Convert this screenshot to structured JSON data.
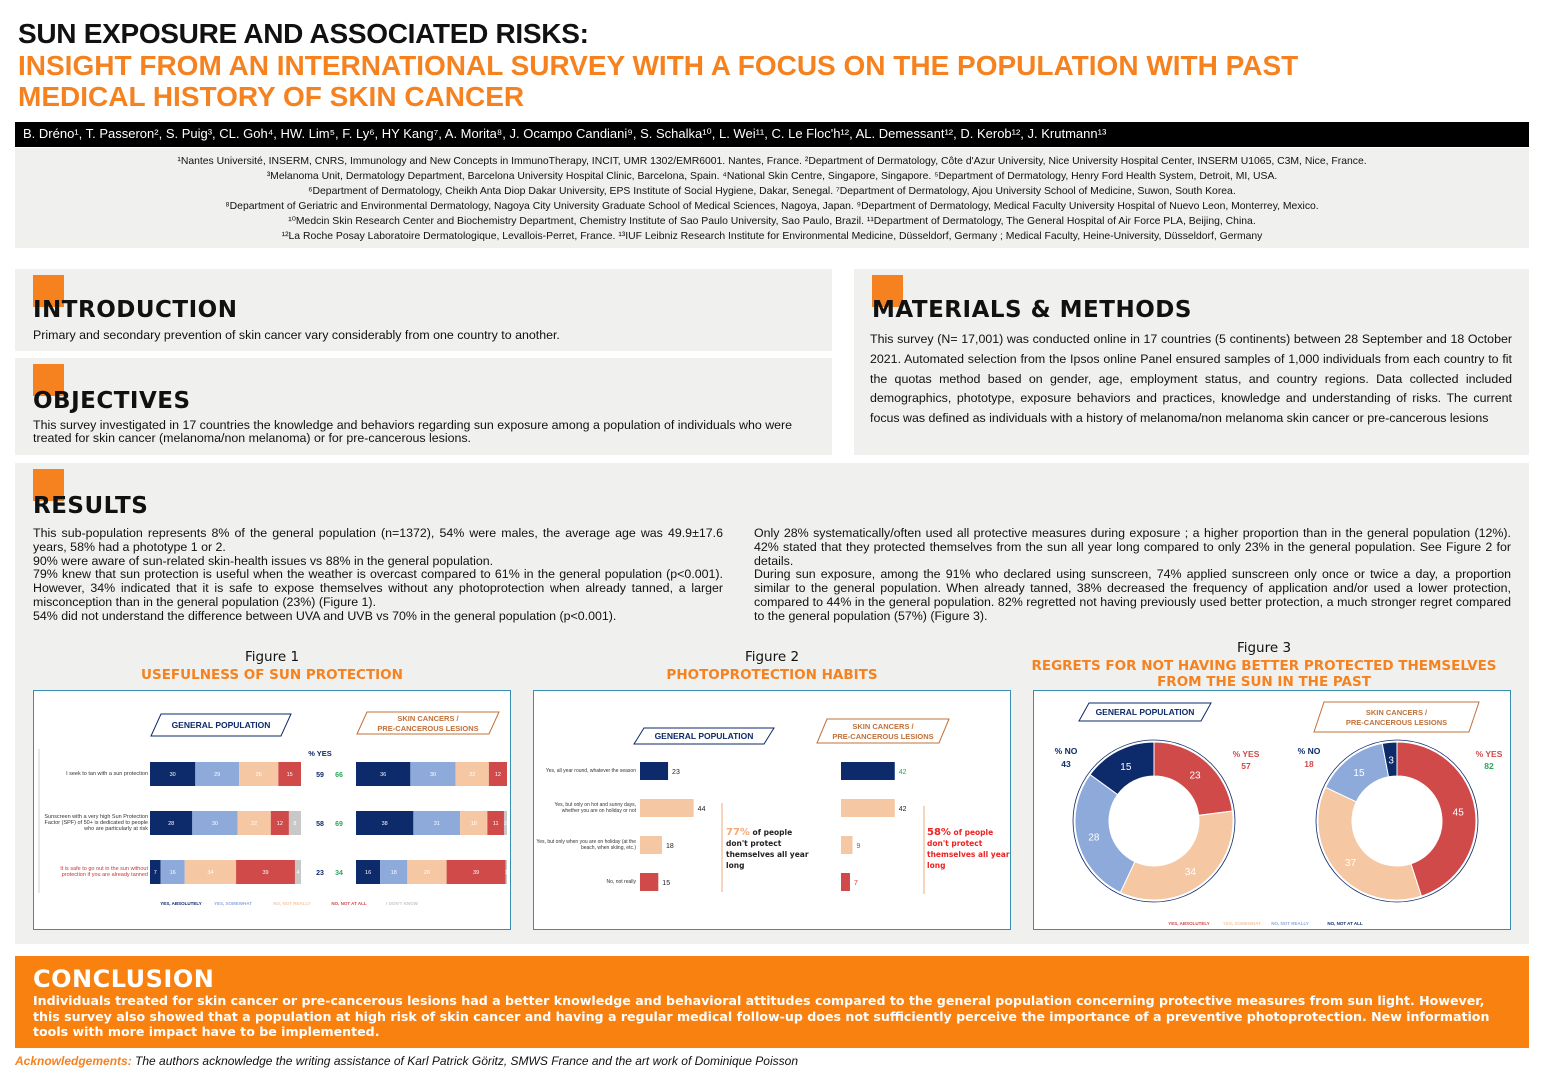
{
  "title": {
    "line1": "SUN EXPOSURE AND ASSOCIATED RISKS:",
    "line2": "INSIGHT FROM AN INTERNATIONAL SURVEY WITH A FOCUS ON THE POPULATION WITH PAST MEDICAL HISTORY OF SKIN CANCER"
  },
  "authors": "B. Dréno¹, T. Passeron², S. Puig³, CL. Goh⁴, HW. Lim⁵, F. Ly⁶, HY Kang⁷, A. Morita⁸, J. Ocampo Candiani⁹, S. Schalka¹⁰, L. Wei¹¹, C. Le Floc'h¹², AL. Demessant¹², D. Kerob¹², J. Krutmann¹³",
  "affiliations": [
    "¹Nantes Université, INSERM, CNRS, Immunology and New Concepts in ImmunoTherapy, INCIT, UMR 1302/EMR6001. Nantes, France. ²Department of Dermatology, Côte d'Azur University, Nice University Hospital Center, INSERM U1065, C3M, Nice, France.",
    "³Melanoma Unit, Dermatology Department, Barcelona University Hospital Clinic, Barcelona, Spain. ⁴National Skin Centre, Singapore, Singapore. ⁵Department of Dermatology, Henry Ford Health System, Detroit, MI, USA.",
    "⁶Department of Dermatology, Cheikh Anta Diop Dakar University, EPS Institute of Social Hygiene, Dakar, Senegal. ⁷Department of Dermatology, Ajou University School of Medicine, Suwon, South Korea.",
    "⁸Department of Geriatric and Environmental Dermatology, Nagoya City University Graduate School of Medical Sciences, Nagoya, Japan. ⁹Department of Dermatology, Medical Faculty University Hospital of Nuevo Leon, Monterrey, Mexico.",
    "¹⁰Medcin Skin Research Center and Biochemistry Department, Chemistry Institute of Sao Paulo University, Sao Paulo, Brazil. ¹¹Department of Dermatology, The General Hospital of Air Force PLA, Beijing, China.",
    "¹²La Roche Posay Laboratoire Dermatologique, Levallois-Perret, France. ¹³IUF Leibniz Research Institute for Environmental Medicine, Düsseldorf, Germany ; Medical Faculty, Heine-University, Düsseldorf, Germany"
  ],
  "introduction": {
    "heading": "INTRODUCTION",
    "text": "Primary and secondary prevention of skin cancer vary considerably from one country to another."
  },
  "objectives": {
    "heading": "OBJECTIVES",
    "text": "This survey investigated in 17 countries the knowledge and behaviors regarding sun exposure among a population of individuals who were treated for skin cancer (melanoma/non melanoma) or for pre-cancerous lesions."
  },
  "methods": {
    "heading": "MATERIALS & METHODS",
    "text": "This survey (N= 17,001) was conducted online in 17 countries (5 continents) between 28 September and 18 October 2021. Automated selection from the Ipsos online Panel ensured samples of 1,000 individuals from each country to fit the quotas method based on gender, age, employment status, and country regions. Data collected included demographics, phototype, exposure behaviors and practices, knowledge and understanding of risks. The current focus was defined as individuals with a history of melanoma/non melanoma skin cancer or pre-cancerous lesions"
  },
  "results": {
    "heading": "RESULTS",
    "left": "This sub-population represents 8% of the general population (n=1372), 54% were males, the average age was 49.9±17.6 years, 58% had a phototype 1 or 2.\n90% were aware of sun-related skin-health issues vs 88% in the general population.\n79% knew that sun protection is useful when the weather is overcast compared to 61% in the general population (p<0.001). However, 34% indicated that it is safe to expose themselves without any photoprotection when already tanned, a larger misconception than in the general population (23%) (Figure 1).\n54% did not understand the difference between UVA and UVB vs 70% in the general population (p<0.001).",
    "right": "Only 28% systematically/often used all protective measures during exposure ; a higher proportion than in the general population (12%). 42% stated that they protected themselves from the sun all year long compared to only 23% in the general population. See Figure 2 for details.\nDuring sun exposure, among the 91% who declared using sunscreen, 74% applied sunscreen only once or twice a day, a proportion similar to the general population. When already tanned, 38% decreased the frequency of application and/or used a lower protection, compared to 44% in the general population. 82% regretted not having previously used better protection, a much stronger regret compared to the general population (57%) (Figure 3)."
  },
  "conclusion": {
    "heading": "CONCLUSION",
    "text": "Individuals treated for skin cancer or pre-cancerous lesions had a better knowledge and behavioral attitudes compared to the general population concerning protective measures from sun light. However, this survey also showed that a population at high risk of skin cancer and having a regular medical follow-up does not sufficiently perceive the importance of a preventive photoprotection. New information tools with more impact have to be implemented."
  },
  "acknowledgements": {
    "label": "Acknowledgements:",
    "text": " The authors acknowledge the writing assistance of Karl Patrick Göritz, SMWS France and the art work of Dominique Poisson"
  },
  "colors": {
    "orange": "#f5821f",
    "navy": "#0d2a6a",
    "lightblue": "#8eaadb",
    "peach": "#f6c7a3",
    "red": "#d04a4a",
    "grey": "#c8c8c8",
    "green": "#2aa65a"
  },
  "chart_data": [
    {
      "type": "bar",
      "stacked": true,
      "orientation": "horizontal",
      "figure": "Figure 1",
      "title": "USEFULNESS OF SUN PROTECTION",
      "group_labels": [
        "GENERAL POPULATION",
        "SKIN CANCERS / PRE-CANCEROUS LESIONS"
      ],
      "yes_header": "% YES",
      "categories": [
        "I seek to tan with a sun protection",
        "Sunscreen with a very high Sun Protection Factor (SPF) of 50+ is dedicated to people who are particularly at risk",
        "It is safe to go out in the sun without protection if you are already tanned"
      ],
      "legend": [
        "YES, ABSOLUTELY",
        "YES, SOMEWHAT",
        "NO, NOT REALLY",
        "NO, NOT AT ALL",
        "I DON'T KNOW"
      ],
      "general": [
        [
          30,
          29,
          26,
          15,
          0
        ],
        [
          28,
          30,
          22,
          12,
          8
        ],
        [
          7,
          16,
          34,
          39,
          4
        ]
      ],
      "skin": [
        [
          36,
          30,
          22,
          12,
          0
        ],
        [
          38,
          31,
          18,
          11,
          2
        ],
        [
          16,
          18,
          26,
          39,
          1
        ]
      ],
      "yes_general": [
        59,
        58,
        23
      ],
      "yes_skin": [
        66,
        69,
        34
      ]
    },
    {
      "type": "bar",
      "orientation": "horizontal",
      "figure": "Figure 2",
      "title": "PHOTOPROTECTION HABITS",
      "group_labels": [
        "GENERAL POPULATION",
        "SKIN CANCERS / PRE-CANCEROUS LESIONS"
      ],
      "categories": [
        "Yes, all year round, whatever the season",
        "Yes, but only on hot and sunny days, whether you are on holiday or not",
        "Yes, but only when you are on holiday (at the beach, when skiing, etc.)",
        "No, not really"
      ],
      "general": [
        23,
        44,
        18,
        15
      ],
      "skin": [
        42,
        42,
        9,
        7
      ],
      "annotation_general": {
        "pct": "77%",
        "text": " of people don't protect themselves all year long"
      },
      "annotation_skin": {
        "pct": "58%",
        "text": " of people don't protect themselves all year long"
      }
    },
    {
      "type": "pie",
      "donut": true,
      "figure": "Figure 3",
      "title": "REGRETS FOR NOT HAVING BETTER PROTECTED THEMSELVES FROM THE SUN IN THE PAST",
      "group_labels": [
        "GENERAL POPULATION",
        "SKIN CANCERS / PRE-CANCEROUS LESIONS"
      ],
      "legend": [
        "YES, ABSOLUTELY",
        "YES, SOMEWHAT",
        "NO, NOT REALLY",
        "NO, NOT AT ALL"
      ],
      "general": [
        23,
        34,
        28,
        15
      ],
      "skin": [
        45,
        37,
        15,
        3
      ],
      "no_label": "% NO",
      "yes_label": "% YES",
      "no_general": 43,
      "yes_general": 57,
      "no_skin": 18,
      "yes_skin": 82
    }
  ]
}
